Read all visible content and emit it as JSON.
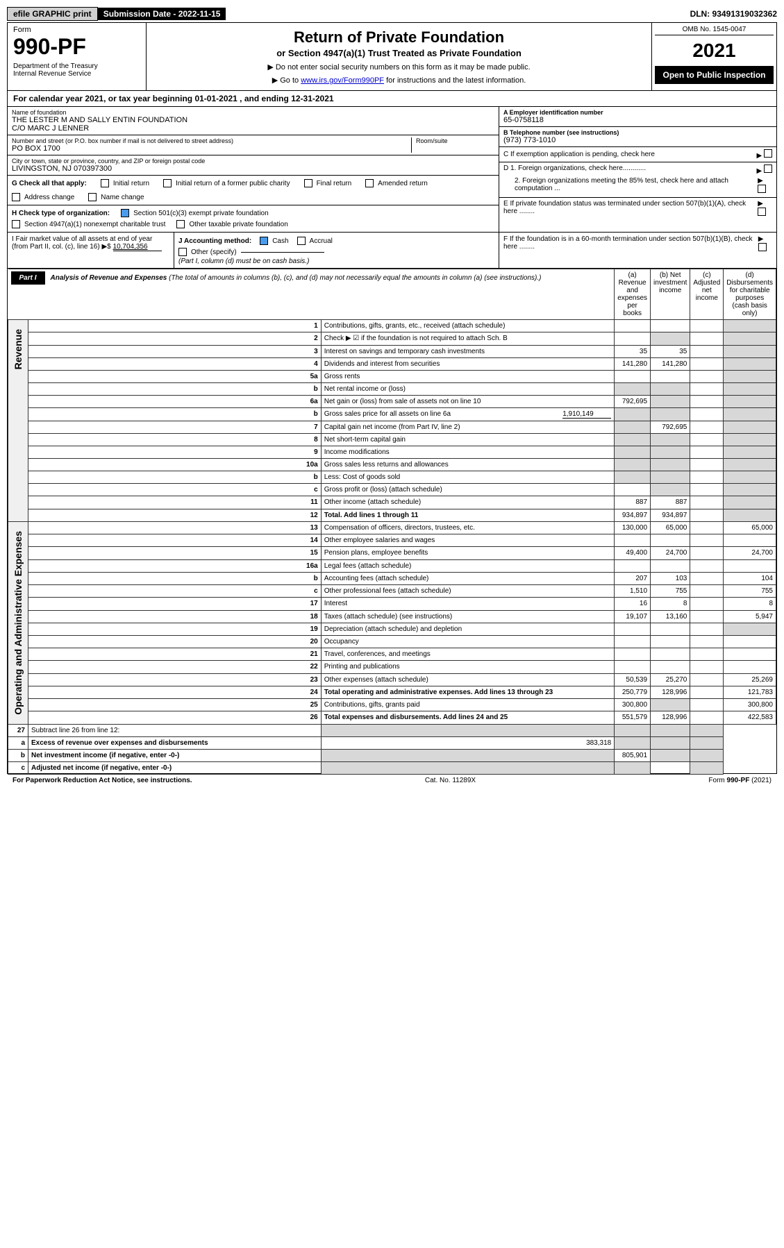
{
  "top": {
    "efile": "efile GRAPHIC print",
    "sub_label": "Submission Date - 2022-11-15",
    "dln": "DLN: 93491319032362"
  },
  "header": {
    "form_label": "Form",
    "form_num": "990-PF",
    "dept": "Department of the Treasury\nInternal Revenue Service",
    "title": "Return of Private Foundation",
    "subtitle": "or Section 4947(a)(1) Trust Treated as Private Foundation",
    "instr1": "▶ Do not enter social security numbers on this form as it may be made public.",
    "instr2_pre": "▶ Go to ",
    "instr2_link": "www.irs.gov/Form990PF",
    "instr2_post": " for instructions and the latest information.",
    "omb": "OMB No. 1545-0047",
    "year": "2021",
    "open": "Open to Public Inspection"
  },
  "cal_year": {
    "pre": "For calendar year 2021, or tax year beginning ",
    "begin": "01-01-2021",
    "mid": " , and ending ",
    "end": "12-31-2021"
  },
  "info": {
    "name_label": "Name of foundation",
    "name": "THE LESTER M AND SALLY ENTIN FOUNDATION",
    "name2": "C/O MARC J LENNER",
    "addr_label": "Number and street (or P.O. box number if mail is not delivered to street address)",
    "addr": "PO BOX 1700",
    "room_label": "Room/suite",
    "city_label": "City or town, state or province, country, and ZIP or foreign postal code",
    "city": "LIVINGSTON, NJ  070397300",
    "ein_label": "A Employer identification number",
    "ein": "65-0758118",
    "tel_label": "B Telephone number (see instructions)",
    "tel": "(973) 773-1010",
    "c_label": "C If exemption application is pending, check here",
    "d1": "D 1. Foreign organizations, check here............",
    "d2": "2. Foreign organizations meeting the 85% test, check here and attach computation ...",
    "e_label": "E If private foundation status was terminated under section 507(b)(1)(A), check here ........",
    "f_label": "F If the foundation is in a 60-month termination under section 507(b)(1)(B), check here ........"
  },
  "g": {
    "label": "G Check all that apply:",
    "opts": [
      "Initial return",
      "Initial return of a former public charity",
      "Final return",
      "Amended return",
      "Address change",
      "Name change"
    ]
  },
  "h": {
    "label": "H Check type of organization:",
    "opt1": "Section 501(c)(3) exempt private foundation",
    "opt2": "Section 4947(a)(1) nonexempt charitable trust",
    "opt3": "Other taxable private foundation"
  },
  "i": {
    "label": "I Fair market value of all assets at end of year (from Part II, col. (c), line 16) ▶$",
    "val": "10,704,356"
  },
  "j": {
    "label": "J Accounting method:",
    "opts": [
      "Cash",
      "Accrual",
      "Other (specify)"
    ],
    "note": "(Part I, column (d) must be on cash basis.)"
  },
  "part1": {
    "tab": "Part I",
    "title": "Analysis of Revenue and Expenses",
    "sub": "(The total of amounts in columns (b), (c), and (d) may not necessarily equal the amounts in column (a) (see instructions).)",
    "cols": {
      "a": "(a) Revenue and expenses per books",
      "b": "(b) Net investment income",
      "c": "(c) Adjusted net income",
      "d": "(d) Disbursements for charitable purposes (cash basis only)"
    }
  },
  "sections": {
    "revenue": "Revenue",
    "opex": "Operating and Administrative Expenses"
  },
  "rows": [
    {
      "ln": "1",
      "desc": "Contributions, gifts, grants, etc., received (attach schedule)",
      "a": "",
      "b": "",
      "shade_d": true
    },
    {
      "ln": "2",
      "desc": "Check ▶ ☑ if the foundation is not required to attach Sch. B",
      "nodata": true,
      "shade_b": true,
      "shade_d": true
    },
    {
      "ln": "3",
      "desc": "Interest on savings and temporary cash investments",
      "a": "35",
      "b": "35",
      "shade_d": true
    },
    {
      "ln": "4",
      "desc": "Dividends and interest from securities",
      "a": "141,280",
      "b": "141,280",
      "shade_d": true
    },
    {
      "ln": "5a",
      "desc": "Gross rents",
      "shade_d": true
    },
    {
      "ln": "b",
      "desc": "Net rental income or (loss)",
      "shade_a": true,
      "shade_b": true,
      "shade_d": true
    },
    {
      "ln": "6a",
      "desc": "Net gain or (loss) from sale of assets not on line 10",
      "a": "792,695",
      "shade_b": true,
      "shade_d": true
    },
    {
      "ln": "b",
      "desc": "Gross sales price for all assets on line 6a",
      "inline": "1,910,149",
      "shade_a": true,
      "shade_b": true,
      "shade_d": true
    },
    {
      "ln": "7",
      "desc": "Capital gain net income (from Part IV, line 2)",
      "shade_a": true,
      "b": "792,695",
      "shade_d": true
    },
    {
      "ln": "8",
      "desc": "Net short-term capital gain",
      "shade_a": true,
      "shade_b": true,
      "shade_d": true
    },
    {
      "ln": "9",
      "desc": "Income modifications",
      "shade_a": true,
      "shade_b": true,
      "shade_d": true
    },
    {
      "ln": "10a",
      "desc": "Gross sales less returns and allowances",
      "shade_a": true,
      "shade_b": true,
      "shade_d": true
    },
    {
      "ln": "b",
      "desc": "Less: Cost of goods sold",
      "shade_a": true,
      "shade_b": true,
      "shade_d": true
    },
    {
      "ln": "c",
      "desc": "Gross profit or (loss) (attach schedule)",
      "shade_b": true,
      "shade_d": true
    },
    {
      "ln": "11",
      "desc": "Other income (attach schedule)",
      "a": "887",
      "b": "887",
      "shade_d": true
    },
    {
      "ln": "12",
      "desc": "Total. Add lines 1 through 11",
      "bold": true,
      "a": "934,897",
      "b": "934,897",
      "shade_d": true
    }
  ],
  "rows2": [
    {
      "ln": "13",
      "desc": "Compensation of officers, directors, trustees, etc.",
      "a": "130,000",
      "b": "65,000",
      "d": "65,000"
    },
    {
      "ln": "14",
      "desc": "Other employee salaries and wages"
    },
    {
      "ln": "15",
      "desc": "Pension plans, employee benefits",
      "a": "49,400",
      "b": "24,700",
      "d": "24,700"
    },
    {
      "ln": "16a",
      "desc": "Legal fees (attach schedule)"
    },
    {
      "ln": "b",
      "desc": "Accounting fees (attach schedule)",
      "a": "207",
      "b": "103",
      "d": "104"
    },
    {
      "ln": "c",
      "desc": "Other professional fees (attach schedule)",
      "a": "1,510",
      "b": "755",
      "d": "755"
    },
    {
      "ln": "17",
      "desc": "Interest",
      "a": "16",
      "b": "8",
      "d": "8"
    },
    {
      "ln": "18",
      "desc": "Taxes (attach schedule) (see instructions)",
      "a": "19,107",
      "b": "13,160",
      "d": "5,947"
    },
    {
      "ln": "19",
      "desc": "Depreciation (attach schedule) and depletion",
      "shade_d": true
    },
    {
      "ln": "20",
      "desc": "Occupancy"
    },
    {
      "ln": "21",
      "desc": "Travel, conferences, and meetings"
    },
    {
      "ln": "22",
      "desc": "Printing and publications"
    },
    {
      "ln": "23",
      "desc": "Other expenses (attach schedule)",
      "a": "50,539",
      "b": "25,270",
      "d": "25,269"
    },
    {
      "ln": "24",
      "desc": "Total operating and administrative expenses. Add lines 13 through 23",
      "bold": true,
      "a": "250,779",
      "b": "128,996",
      "d": "121,783"
    },
    {
      "ln": "25",
      "desc": "Contributions, gifts, grants paid",
      "a": "300,800",
      "shade_b": true,
      "d": "300,800"
    },
    {
      "ln": "26",
      "desc": "Total expenses and disbursements. Add lines 24 and 25",
      "bold": true,
      "a": "551,579",
      "b": "128,996",
      "d": "422,583"
    }
  ],
  "rows3": [
    {
      "ln": "27",
      "desc": "Subtract line 26 from line 12:",
      "shade_a": true,
      "shade_b": true,
      "shade_c": true,
      "shade_d": true
    },
    {
      "ln": "a",
      "desc": "Excess of revenue over expenses and disbursements",
      "bold": true,
      "a": "383,318",
      "shade_b": true,
      "shade_c": true,
      "shade_d": true
    },
    {
      "ln": "b",
      "desc": "Net investment income (if negative, enter -0-)",
      "bold": true,
      "shade_a": true,
      "b": "805,901",
      "shade_c": true,
      "shade_d": true
    },
    {
      "ln": "c",
      "desc": "Adjusted net income (if negative, enter -0-)",
      "bold": true,
      "shade_a": true,
      "shade_b": true,
      "shade_d": true
    }
  ],
  "footer": {
    "left": "For Paperwork Reduction Act Notice, see instructions.",
    "mid": "Cat. No. 11289X",
    "right": "Form 990-PF (2021)"
  }
}
